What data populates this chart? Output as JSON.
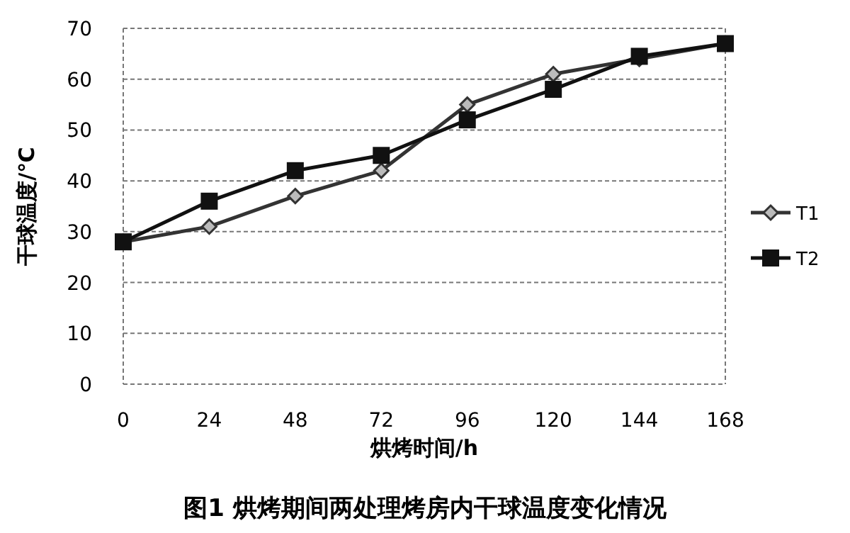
{
  "chart_data": {
    "type": "line",
    "title": "图1 烘烤期间两处理烤房内干球温度变化情况",
    "xlabel": "烘烤时间/h",
    "ylabel": "干球温度/℃",
    "x": [
      0,
      24,
      48,
      72,
      96,
      120,
      144,
      168
    ],
    "xlim": [
      0,
      168
    ],
    "xticks": [
      0,
      24,
      48,
      72,
      96,
      120,
      144,
      168
    ],
    "ylim": [
      0,
      70
    ],
    "yticks": [
      0,
      10,
      20,
      30,
      40,
      50,
      60,
      70
    ],
    "grid": "y",
    "legend": "right",
    "series": [
      {
        "name": "T1",
        "color": "#333333",
        "marker": "diamond",
        "values": [
          28,
          31,
          37,
          42,
          55,
          61,
          64,
          67
        ]
      },
      {
        "name": "T2",
        "color": "#111111",
        "marker": "square",
        "values": [
          28,
          36,
          42,
          45,
          52,
          58,
          64.5,
          67
        ]
      }
    ]
  }
}
